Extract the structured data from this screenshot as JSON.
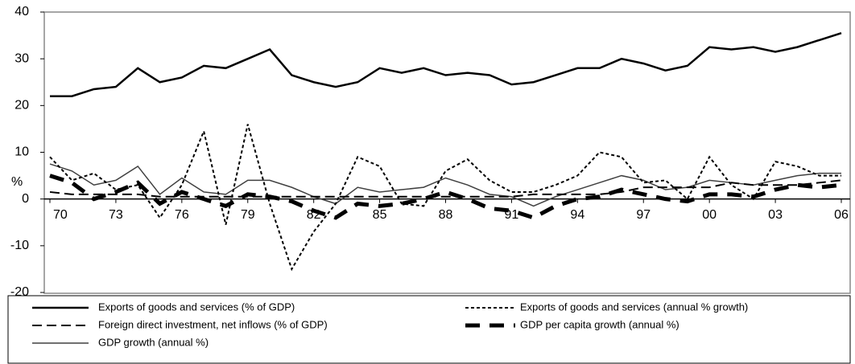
{
  "chart_data": {
    "type": "line",
    "y_label": "%",
    "categories": [
      "70",
      null,
      null,
      "73",
      null,
      null,
      "76",
      null,
      null,
      "79",
      null,
      null,
      "82",
      null,
      null,
      "85",
      null,
      null,
      "88",
      null,
      null,
      "91",
      null,
      null,
      "94",
      null,
      null,
      "97",
      null,
      null,
      "00",
      null,
      null,
      "03",
      null,
      null,
      "06"
    ],
    "ylim": [
      -20,
      40
    ],
    "yticks": [
      -20,
      -10,
      0,
      10,
      20,
      30,
      40
    ],
    "series": [
      {
        "name": "Exports of goods and services (% of GDP)",
        "color": "#000000",
        "style": "solid",
        "width": 2.5,
        "values": [
          22,
          22,
          23.5,
          24,
          28,
          25,
          26,
          28.5,
          28,
          30,
          32,
          26.5,
          25,
          24,
          25,
          28,
          27,
          28,
          26.5,
          27,
          26.5,
          24.5,
          25,
          26.5,
          28,
          28,
          30,
          29,
          27.5,
          28.5,
          32.5,
          32,
          32.5,
          31.5,
          32.5,
          34,
          35.5
        ]
      },
      {
        "name": "Exports of goods and services (annual % growth)",
        "color": "#000000",
        "style": "dotted",
        "width": 2,
        "values": [
          9,
          4,
          5.5,
          2,
          3,
          -4,
          3,
          14.5,
          -5.5,
          16,
          -1,
          -15,
          -7,
          -1,
          9,
          7,
          -1,
          -1.5,
          6,
          8.5,
          4,
          1.5,
          1.5,
          3,
          5,
          10,
          9,
          3.5,
          4,
          0,
          9,
          3,
          0,
          8,
          7,
          5,
          5
        ]
      },
      {
        "name": "Foreign direct investment, net inflows (% of GDP)",
        "color": "#000000",
        "style": "dashed",
        "width": 2,
        "values": [
          1.5,
          1,
          1,
          1,
          1,
          0.5,
          0.5,
          0.5,
          0.5,
          0.5,
          0.5,
          0.5,
          0.5,
          0.5,
          0.5,
          0.5,
          0.5,
          0.5,
          0.5,
          0.5,
          0.5,
          0.5,
          1,
          1,
          1,
          1,
          1.5,
          2.5,
          2.5,
          2.5,
          2.5,
          3.5,
          3,
          3,
          3,
          3.5,
          4
        ]
      },
      {
        "name": "GDP per capita growth (annual %)",
        "color": "#000000",
        "style": "thick-dashed",
        "width": 5,
        "values": [
          5,
          3.5,
          0,
          1.5,
          3.5,
          -1,
          1.5,
          0,
          -1.5,
          1,
          0.5,
          -0.5,
          -2.5,
          -4,
          -1,
          -1.5,
          -1,
          0,
          1.5,
          0,
          -2,
          -2.5,
          -4,
          -1.5,
          0,
          0.5,
          2,
          1,
          0,
          -0.5,
          1,
          1,
          0.5,
          2,
          3,
          2.5,
          3
        ]
      },
      {
        "name": "GDP growth (annual %)",
        "color": "#404040",
        "style": "solid",
        "width": 1.5,
        "values": [
          7.5,
          6,
          3,
          4,
          7,
          1,
          4.5,
          1.5,
          1,
          4,
          4,
          2.5,
          0.5,
          -1,
          2.5,
          1.5,
          2,
          2.5,
          4.5,
          3,
          1,
          0.5,
          -1.5,
          0.5,
          2,
          3.5,
          5,
          4,
          2,
          2.5,
          4,
          3.5,
          3,
          4,
          5,
          5.5,
          5.5
        ]
      }
    ]
  }
}
